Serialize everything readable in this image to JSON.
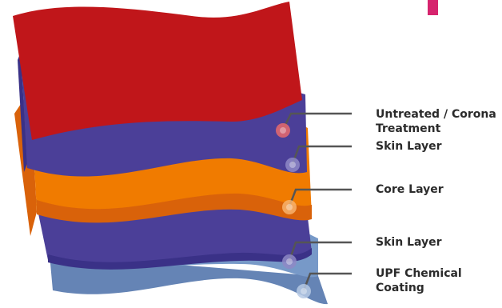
{
  "layers": [
    {
      "id": "untreated",
      "label_lines": [
        "Untreated / Corona",
        "Treatment"
      ],
      "color": "#c0161a",
      "dot_color": "#e86a6c"
    },
    {
      "id": "skin-top",
      "label_lines": [
        "Skin Layer"
      ],
      "color": "#4b3f98",
      "dot_color": "#8e88c6"
    },
    {
      "id": "core",
      "label_lines": [
        "Core Layer"
      ],
      "color": "#f07b00",
      "dot_color": "#f7b36d"
    },
    {
      "id": "skin-bottom",
      "label_lines": [
        "Skin Layer"
      ],
      "color": "#4b3f98",
      "dot_color": "#8e88c6"
    },
    {
      "id": "upf",
      "label_lines": [
        "UPF Chemical",
        "Coating"
      ],
      "color": "#7799c8",
      "dot_color": "#b6c9e4"
    }
  ],
  "colors": {
    "accent_mark": "#d6246e",
    "leader_line": "#555555",
    "core_side": "#d9620a",
    "skin_side": "#3a3187",
    "upf_side": "#6584b5"
  }
}
